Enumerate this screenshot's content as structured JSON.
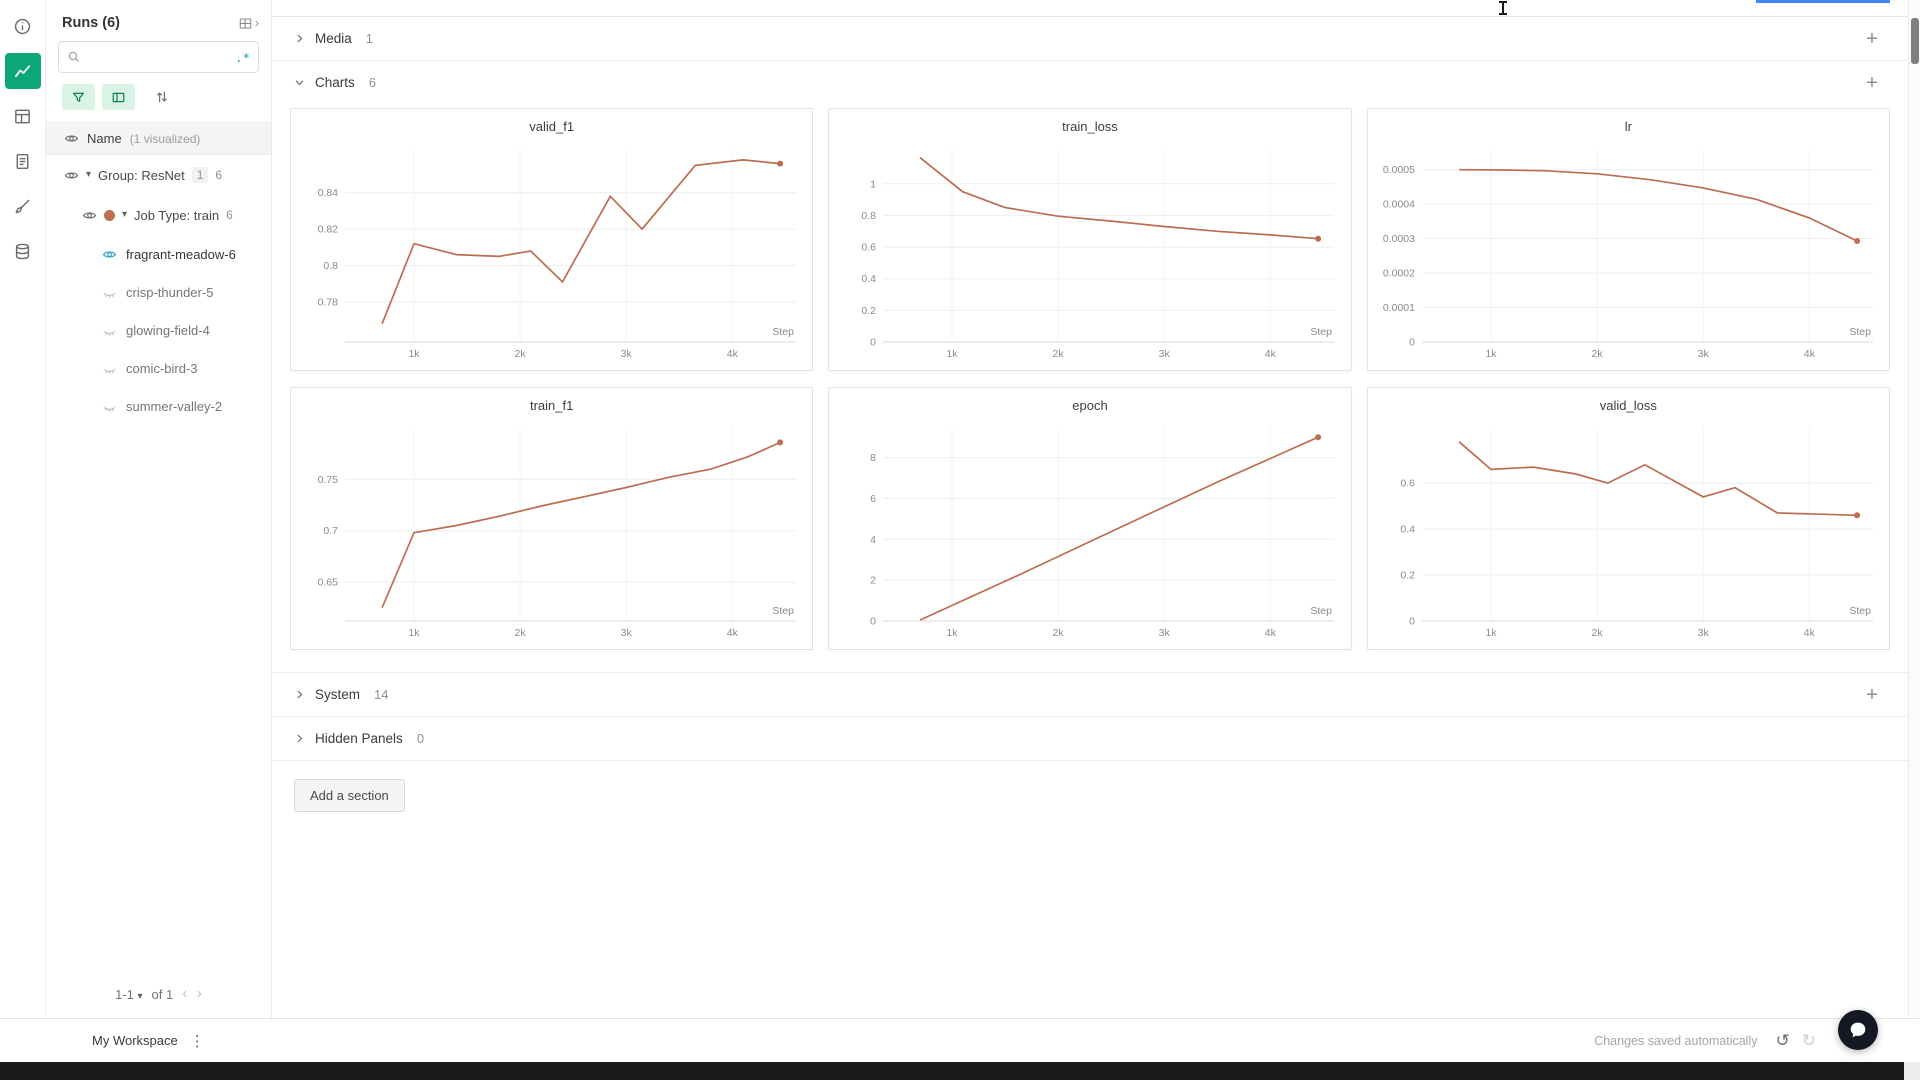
{
  "colors": {
    "accent_teal": "#0ca678",
    "mint_bg": "#d9f3e5",
    "link_teal": "#18a0b8",
    "run_line": "#bc6d4f",
    "eye_visible": "#2aa3c9",
    "top_accent": "#4285f4"
  },
  "icon_rail": {
    "items": [
      "overview",
      "workspace-charts",
      "tables",
      "reports",
      "sweeps",
      "artifacts"
    ],
    "active": "workspace-charts"
  },
  "runs_panel": {
    "title": "Runs (6)",
    "search": {
      "placeholder": "",
      "regex": ".*"
    },
    "header_row": {
      "label": "Name",
      "note": "(1 visualized)"
    },
    "tree": {
      "group": {
        "label": "Group: ResNet",
        "tag_count": "1",
        "run_count": "6"
      },
      "job": {
        "label": "Job Type: train",
        "run_count": "6"
      },
      "runs": [
        {
          "name": "fragrant-meadow-6",
          "visualized": true
        },
        {
          "name": "crisp-thunder-5",
          "visualized": false
        },
        {
          "name": "glowing-field-4",
          "visualized": false
        },
        {
          "name": "comic-bird-3",
          "visualized": false
        },
        {
          "name": "summer-valley-2",
          "visualized": false
        }
      ]
    },
    "pagination": {
      "range": "1-1",
      "of_label": "of 1"
    }
  },
  "sections": [
    {
      "id": "media",
      "label": "Media",
      "count": "1",
      "collapsed": true
    },
    {
      "id": "charts",
      "label": "Charts",
      "count": "6",
      "collapsed": false
    },
    {
      "id": "system",
      "label": "System",
      "count": "14",
      "collapsed": true
    },
    {
      "id": "hidden",
      "label": "Hidden Panels",
      "count": "0",
      "collapsed": true
    }
  ],
  "add_section_label": "Add a section",
  "footer": {
    "workspace_label": "My Workspace",
    "status": "Changes saved automatically"
  },
  "chart_data": [
    {
      "id": "valid_f1",
      "type": "line",
      "title": "valid_f1",
      "xlabel": "Step",
      "x": [
        700,
        1000,
        1400,
        1800,
        2100,
        2400,
        2850,
        3150,
        3650,
        4100,
        4450
      ],
      "y": [
        0.768,
        0.812,
        0.806,
        0.805,
        0.808,
        0.791,
        0.838,
        0.82,
        0.855,
        0.858,
        0.856
      ],
      "xlim": [
        350,
        4600
      ],
      "ylim": [
        0.758,
        0.864
      ],
      "xticks": [
        1000,
        2000,
        3000,
        4000
      ],
      "xtick_labels": [
        "1k",
        "2k",
        "3k",
        "4k"
      ],
      "yticks": [
        0.78,
        0.8,
        0.82,
        0.84
      ]
    },
    {
      "id": "train_loss",
      "type": "line",
      "title": "train_loss",
      "xlabel": "Step",
      "x": [
        700,
        1100,
        1500,
        2000,
        2500,
        3000,
        3500,
        4000,
        4450
      ],
      "y": [
        1.165,
        0.95,
        0.85,
        0.795,
        0.764,
        0.73,
        0.7,
        0.677,
        0.653
      ],
      "xlim": [
        350,
        4600
      ],
      "ylim": [
        0,
        1.22
      ],
      "xticks": [
        1000,
        2000,
        3000,
        4000
      ],
      "xtick_labels": [
        "1k",
        "2k",
        "3k",
        "4k"
      ],
      "yticks": [
        0,
        0.2,
        0.4,
        0.6,
        0.8,
        1
      ]
    },
    {
      "id": "lr",
      "type": "line",
      "title": "lr",
      "xlabel": "Step",
      "x": [
        700,
        1100,
        1500,
        2000,
        2500,
        3000,
        3500,
        4000,
        4450
      ],
      "y": [
        0.0005,
        0.000499,
        0.000497,
        0.000488,
        0.000471,
        0.000447,
        0.000414,
        0.00036,
        0.000293
      ],
      "xlim": [
        350,
        4600
      ],
      "ylim": [
        0,
        0.00056
      ],
      "xticks": [
        1000,
        2000,
        3000,
        4000
      ],
      "xtick_labels": [
        "1k",
        "2k",
        "3k",
        "4k"
      ],
      "yticks": [
        0,
        0.0001,
        0.0002,
        0.0003,
        0.0004,
        0.0005
      ]
    },
    {
      "id": "train_f1",
      "type": "line",
      "title": "train_f1",
      "xlabel": "Step",
      "x": [
        700,
        1000,
        1400,
        1800,
        2200,
        2600,
        3000,
        3400,
        3800,
        4150,
        4450
      ],
      "y": [
        0.625,
        0.698,
        0.705,
        0.714,
        0.724,
        0.733,
        0.742,
        0.752,
        0.76,
        0.772,
        0.786
      ],
      "xlim": [
        350,
        4600
      ],
      "ylim": [
        0.612,
        0.8
      ],
      "xticks": [
        1000,
        2000,
        3000,
        4000
      ],
      "xtick_labels": [
        "1k",
        "2k",
        "3k",
        "4k"
      ],
      "yticks": [
        0.65,
        0.7,
        0.75
      ]
    },
    {
      "id": "epoch",
      "type": "line",
      "title": "epoch",
      "xlabel": "Step",
      "x": [
        700,
        1650,
        2550,
        3500,
        4450
      ],
      "y": [
        0.05,
        2.3,
        4.5,
        6.8,
        9.0
      ],
      "xlim": [
        350,
        4600
      ],
      "ylim": [
        0,
        9.45
      ],
      "xticks": [
        1000,
        2000,
        3000,
        4000
      ],
      "xtick_labels": [
        "1k",
        "2k",
        "3k",
        "4k"
      ],
      "yticks": [
        0,
        2,
        4,
        6,
        8
      ]
    },
    {
      "id": "valid_loss",
      "type": "line",
      "title": "valid_loss",
      "xlabel": "Step",
      "x": [
        700,
        1000,
        1400,
        1800,
        2100,
        2450,
        3000,
        3300,
        3700,
        4100,
        4450
      ],
      "y": [
        0.78,
        0.66,
        0.67,
        0.64,
        0.6,
        0.68,
        0.54,
        0.58,
        0.47,
        0.465,
        0.46
      ],
      "xlim": [
        350,
        4600
      ],
      "ylim": [
        0,
        0.84
      ],
      "xticks": [
        1000,
        2000,
        3000,
        4000
      ],
      "xtick_labels": [
        "1k",
        "2k",
        "3k",
        "4k"
      ],
      "yticks": [
        0,
        0.2,
        0.4,
        0.6
      ]
    }
  ]
}
